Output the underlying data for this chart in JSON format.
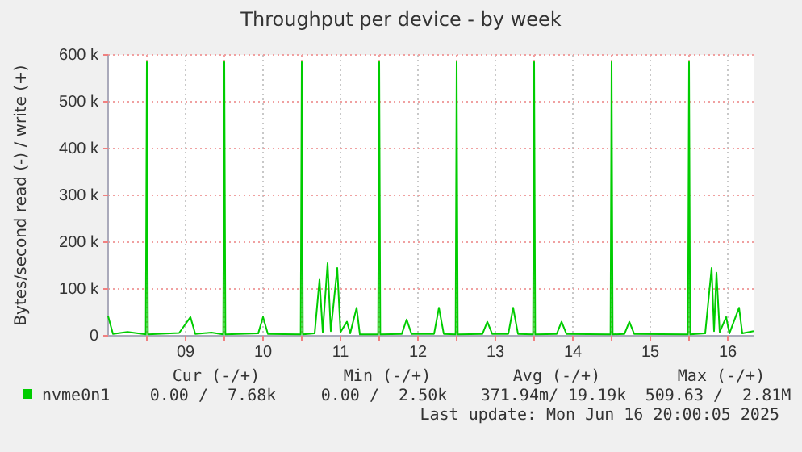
{
  "chart_data": {
    "type": "line",
    "title": "Throughput per device - by week",
    "ylabel": "Bytes/second read (-) / write (+)",
    "xlim": [
      "2025-06-08T12:00",
      "2025-06-16T20:00"
    ],
    "xticks": [
      {
        "value": "2025-06-09T00:00",
        "label": null
      },
      {
        "value": "2025-06-09T12:00",
        "label": "09"
      },
      {
        "value": "2025-06-10T00:00",
        "label": null
      },
      {
        "value": "2025-06-10T12:00",
        "label": "10"
      },
      {
        "value": "2025-06-11T00:00",
        "label": null
      },
      {
        "value": "2025-06-11T12:00",
        "label": "11"
      },
      {
        "value": "2025-06-12T00:00",
        "label": null
      },
      {
        "value": "2025-06-12T12:00",
        "label": "12"
      },
      {
        "value": "2025-06-13T00:00",
        "label": null
      },
      {
        "value": "2025-06-13T12:00",
        "label": "13"
      },
      {
        "value": "2025-06-14T00:00",
        "label": null
      },
      {
        "value": "2025-06-14T12:00",
        "label": "14"
      },
      {
        "value": "2025-06-15T00:00",
        "label": null
      },
      {
        "value": "2025-06-15T12:00",
        "label": "15"
      },
      {
        "value": "2025-06-16T00:00",
        "label": null
      },
      {
        "value": "2025-06-16T12:00",
        "label": "16"
      }
    ],
    "ylim": [
      0,
      600000
    ],
    "yticks": [
      0,
      {
        "value": 100000,
        "label": "100 k"
      },
      {
        "value": 200000,
        "label": "200 k"
      },
      {
        "value": 300000,
        "label": "300 k"
      },
      {
        "value": 400000,
        "label": "400 k"
      },
      {
        "value": 500000,
        "label": "500 k"
      },
      {
        "value": 600000,
        "label": "600 k"
      }
    ],
    "grid": true,
    "legend": "bottom",
    "marker": "none",
    "line_style": "solid",
    "x": [
      "2025-06-08T12:00",
      "2025-06-08T13:30",
      "2025-06-08T18:00",
      "2025-06-08T23:40",
      "2025-06-09T00:00",
      "2025-06-09T00:20",
      "2025-06-09T10:00",
      "2025-06-09T13:30",
      "2025-06-09T15:00",
      "2025-06-09T20:00",
      "2025-06-09T23:40",
      "2025-06-10T00:00",
      "2025-06-10T00:20",
      "2025-06-10T10:30",
      "2025-06-10T12:00",
      "2025-06-10T13:30",
      "2025-06-10T23:40",
      "2025-06-11T00:00",
      "2025-06-11T00:20",
      "2025-06-11T04:00",
      "2025-06-11T05:30",
      "2025-06-11T06:30",
      "2025-06-11T08:00",
      "2025-06-11T09:00",
      "2025-06-11T11:00",
      "2025-06-11T12:00",
      "2025-06-11T14:00",
      "2025-06-11T15:00",
      "2025-06-11T17:00",
      "2025-06-11T18:00",
      "2025-06-11T23:40",
      "2025-06-12T00:00",
      "2025-06-12T00:20",
      "2025-06-12T07:00",
      "2025-06-12T08:30",
      "2025-06-12T10:00",
      "2025-06-12T17:00",
      "2025-06-12T18:30",
      "2025-06-12T20:00",
      "2025-06-12T23:40",
      "2025-06-13T00:00",
      "2025-06-13T00:20",
      "2025-06-13T08:00",
      "2025-06-13T09:30",
      "2025-06-13T11:00",
      "2025-06-13T16:00",
      "2025-06-13T17:30",
      "2025-06-13T19:00",
      "2025-06-13T23:40",
      "2025-06-14T00:00",
      "2025-06-14T00:20",
      "2025-06-14T07:00",
      "2025-06-14T08:30",
      "2025-06-14T10:00",
      "2025-06-14T23:40",
      "2025-06-15T00:00",
      "2025-06-15T00:20",
      "2025-06-15T04:00",
      "2025-06-15T05:30",
      "2025-06-15T07:00",
      "2025-06-15T23:40",
      "2025-06-16T00:00",
      "2025-06-16T00:20",
      "2025-06-16T05:00",
      "2025-06-16T07:00",
      "2025-06-16T07:45",
      "2025-06-16T08:30",
      "2025-06-16T09:30",
      "2025-06-16T11:30",
      "2025-06-16T12:30",
      "2025-06-16T15:30",
      "2025-06-16T16:30",
      "2025-06-16T20:00"
    ],
    "series": [
      {
        "name": "nvme0n1",
        "color": "#00cc00",
        "values": [
          42000,
          4000,
          8000,
          3000,
          585000,
          3000,
          6000,
          40000,
          4000,
          7000,
          3000,
          585000,
          3000,
          5000,
          40000,
          4000,
          3000,
          585000,
          3000,
          5000,
          120000,
          8000,
          155000,
          10000,
          145000,
          8000,
          30000,
          5000,
          60000,
          3000,
          3000,
          585000,
          3000,
          4000,
          35000,
          4000,
          4000,
          60000,
          4000,
          3000,
          585000,
          3000,
          4000,
          30000,
          4000,
          4000,
          60000,
          4000,
          3000,
          585000,
          3000,
          4000,
          30000,
          4000,
          3000,
          585000,
          3000,
          4000,
          30000,
          4000,
          3000,
          585000,
          3000,
          5000,
          145000,
          10000,
          135000,
          8000,
          40000,
          5000,
          60000,
          5000,
          10000
        ]
      }
    ],
    "annotations": [
      "Cur (-/+)",
      "Min (-/+)",
      "Avg (-/+)",
      "Max (-/+)",
      "0.00 /  7.68k",
      "0.00 /  2.50k",
      "371.94m/ 19.19k",
      "509.63 /  2.81M",
      "Last update: Mon Jun 16 20:00:05 2025"
    ]
  }
}
